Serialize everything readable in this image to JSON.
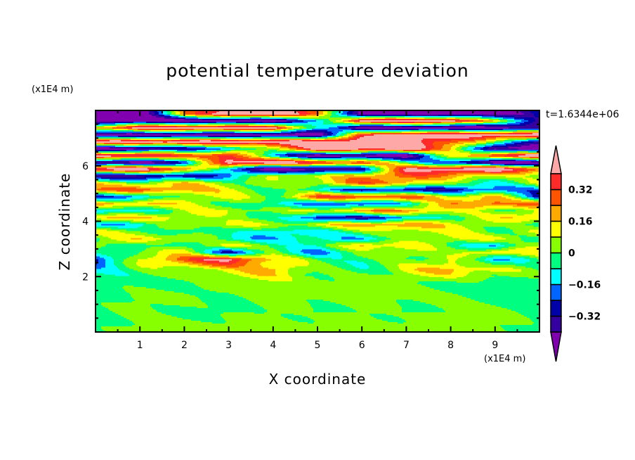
{
  "chart_data": {
    "type": "heatmap",
    "title": "potential temperature deviation",
    "xlabel": "X coordinate",
    "ylabel": "Z coordinate",
    "x_unit": "(x1E4 m)",
    "y_unit": "(x1E4 m)",
    "time_label": "t=1.6344e+06",
    "xlim": [
      0,
      10
    ],
    "ylim": [
      0,
      8
    ],
    "x_ticks": [
      1,
      2,
      3,
      4,
      5,
      6,
      7,
      8,
      9
    ],
    "x_tick_labels": [
      "1",
      "2",
      "3",
      "4",
      "5",
      "6",
      "7",
      "8",
      "9"
    ],
    "y_ticks": [
      2,
      4,
      6
    ],
    "y_tick_labels": [
      "2",
      "4",
      "6"
    ],
    "levels": [
      -0.4,
      -0.32,
      -0.24,
      -0.16,
      -0.08,
      0,
      0.08,
      0.16,
      0.24,
      0.32,
      0.4
    ],
    "colors": [
      "#8000b0",
      "#3400a0",
      "#0000a8",
      "#0064ff",
      "#00ffff",
      "#00ff80",
      "#88ff00",
      "#ffff00",
      "#ffaa00",
      "#ff5500",
      "#ff2a2a",
      "#ffa8a8"
    ],
    "colorbar_labels": [
      {
        "value": 0.32,
        "text": "0.32"
      },
      {
        "value": 0.16,
        "text": "0.16"
      },
      {
        "value": 0,
        "text": "0"
      },
      {
        "value": -0.16,
        "text": "−0.16"
      },
      {
        "value": -0.32,
        "text": "−0.32"
      }
    ],
    "grid_x": [
      0,
      1,
      2,
      3,
      4,
      5,
      6,
      7,
      8,
      9,
      10
    ],
    "grid_z": [
      7.875,
      7.625,
      7.375,
      7.125,
      6.875,
      6.625,
      6.375,
      6.125,
      5.875,
      5.625,
      5.375,
      5.125,
      4.875,
      4.625,
      4.375,
      4.125,
      3.875,
      3.625,
      3.375,
      3.125,
      2.875,
      2.625,
      2.25,
      1.75,
      1.25,
      0.75,
      0.25
    ],
    "values": [
      [
        -0.5,
        -0.5,
        0.2,
        0.5,
        0.5,
        0.3,
        -0.5,
        -0.5,
        -0.5,
        -0.5,
        -0.3
      ],
      [
        -0.5,
        -0.5,
        -0.5,
        -0.5,
        -0.5,
        -0.2,
        0.5,
        0.5,
        0.5,
        0.1,
        -0.3
      ],
      [
        0.2,
        0.5,
        0.5,
        0.5,
        0.5,
        -0.1,
        -0.5,
        -0.5,
        -0.5,
        -0.5,
        -0.4
      ],
      [
        -0.5,
        -0.5,
        -0.5,
        -0.5,
        -0.5,
        -0.5,
        0.3,
        0.5,
        0.5,
        0.5,
        0.5
      ],
      [
        0.5,
        0.5,
        0.5,
        0.5,
        0.5,
        0.5,
        0.5,
        0.5,
        0.3,
        0.0,
        -0.3
      ],
      [
        -0.5,
        -0.5,
        -0.3,
        -0.2,
        0.1,
        0.5,
        0.5,
        0.5,
        0.2,
        -0.5,
        -0.5
      ],
      [
        0.5,
        0.5,
        0.3,
        0.4,
        -0.2,
        -0.5,
        -0.5,
        -0.5,
        0.1,
        0.4,
        0.5
      ],
      [
        -0.5,
        -0.5,
        -0.3,
        0.5,
        0.5,
        0.4,
        0.3,
        0.0,
        -0.3,
        -0.5,
        -0.5
      ],
      [
        0.5,
        0.5,
        0.3,
        -0.2,
        -0.5,
        -0.5,
        -0.3,
        0.4,
        0.5,
        0.5,
        0.3
      ],
      [
        -0.4,
        -0.4,
        -0.3,
        -0.2,
        0.1,
        0.1,
        0.2,
        0.3,
        0.2,
        0.1,
        0.0
      ],
      [
        0.1,
        0.05,
        0.15,
        0.05,
        0.0,
        0.1,
        0.3,
        0.2,
        0.0,
        -0.1,
        0.1
      ],
      [
        0.25,
        0.3,
        0.2,
        0.1,
        0.0,
        -0.1,
        -0.3,
        -0.3,
        -0.3,
        -0.2,
        -0.2
      ],
      [
        -0.25,
        -0.2,
        0.05,
        0.1,
        0.0,
        0.3,
        0.35,
        0.3,
        0.1,
        0.2,
        -0.3
      ],
      [
        0.2,
        0.2,
        0.1,
        0.0,
        -0.1,
        -0.2,
        -0.3,
        -0.1,
        0.2,
        0.3,
        0.25
      ],
      [
        -0.2,
        -0.1,
        0.05,
        0.1,
        0.0,
        0.1,
        0.2,
        0.25,
        0.1,
        0.0,
        0.1
      ],
      [
        0.2,
        0.15,
        0.1,
        0.0,
        0.0,
        -0.3,
        -0.3,
        -0.2,
        0.0,
        0.1,
        0.2
      ],
      [
        -0.15,
        -0.1,
        0.05,
        0.1,
        0.05,
        0.1,
        0.2,
        0.25,
        0.1,
        0.05,
        -0.1
      ],
      [
        0.1,
        0.05,
        -0.1,
        0.0,
        -0.15,
        -0.1,
        0.0,
        0.1,
        0.1,
        0.0,
        0.1
      ],
      [
        0.0,
        0.15,
        0.1,
        -0.1,
        -0.15,
        -0.1,
        -0.15,
        0.0,
        0.1,
        0.1,
        0.0
      ],
      [
        0.1,
        -0.1,
        0.0,
        0.1,
        0.0,
        -0.1,
        0.2,
        0.1,
        0.0,
        -0.2,
        0.1
      ],
      [
        -0.1,
        0.05,
        0.1,
        -0.3,
        0.0,
        -0.2,
        0.0,
        0.1,
        0.0,
        0.2,
        0.1
      ],
      [
        -0.3,
        0.1,
        0.3,
        0.45,
        0.15,
        0.0,
        -0.05,
        0.0,
        0.1,
        -0.2,
        0.0
      ],
      [
        -0.1,
        0.0,
        0.05,
        0.1,
        0.2,
        0.0,
        -0.05,
        0.1,
        0.2,
        0.1,
        0.0
      ],
      [
        -0.04,
        -0.04,
        -0.04,
        0.04,
        0.04,
        0.04,
        0.04,
        0.04,
        -0.04,
        -0.04,
        -0.04
      ],
      [
        -0.04,
        0.04,
        0.04,
        -0.04,
        0.04,
        0.04,
        0.04,
        0.04,
        0.04,
        -0.04,
        -0.04
      ],
      [
        -0.04,
        0.04,
        -0.04,
        -0.04,
        0.04,
        -0.04,
        0.04,
        -0.04,
        0.04,
        0.04,
        -0.04
      ],
      [
        -0.04,
        0.04,
        0.04,
        0.04,
        0.04,
        0.04,
        0.04,
        0.04,
        0.04,
        0.04,
        -0.04
      ]
    ]
  }
}
